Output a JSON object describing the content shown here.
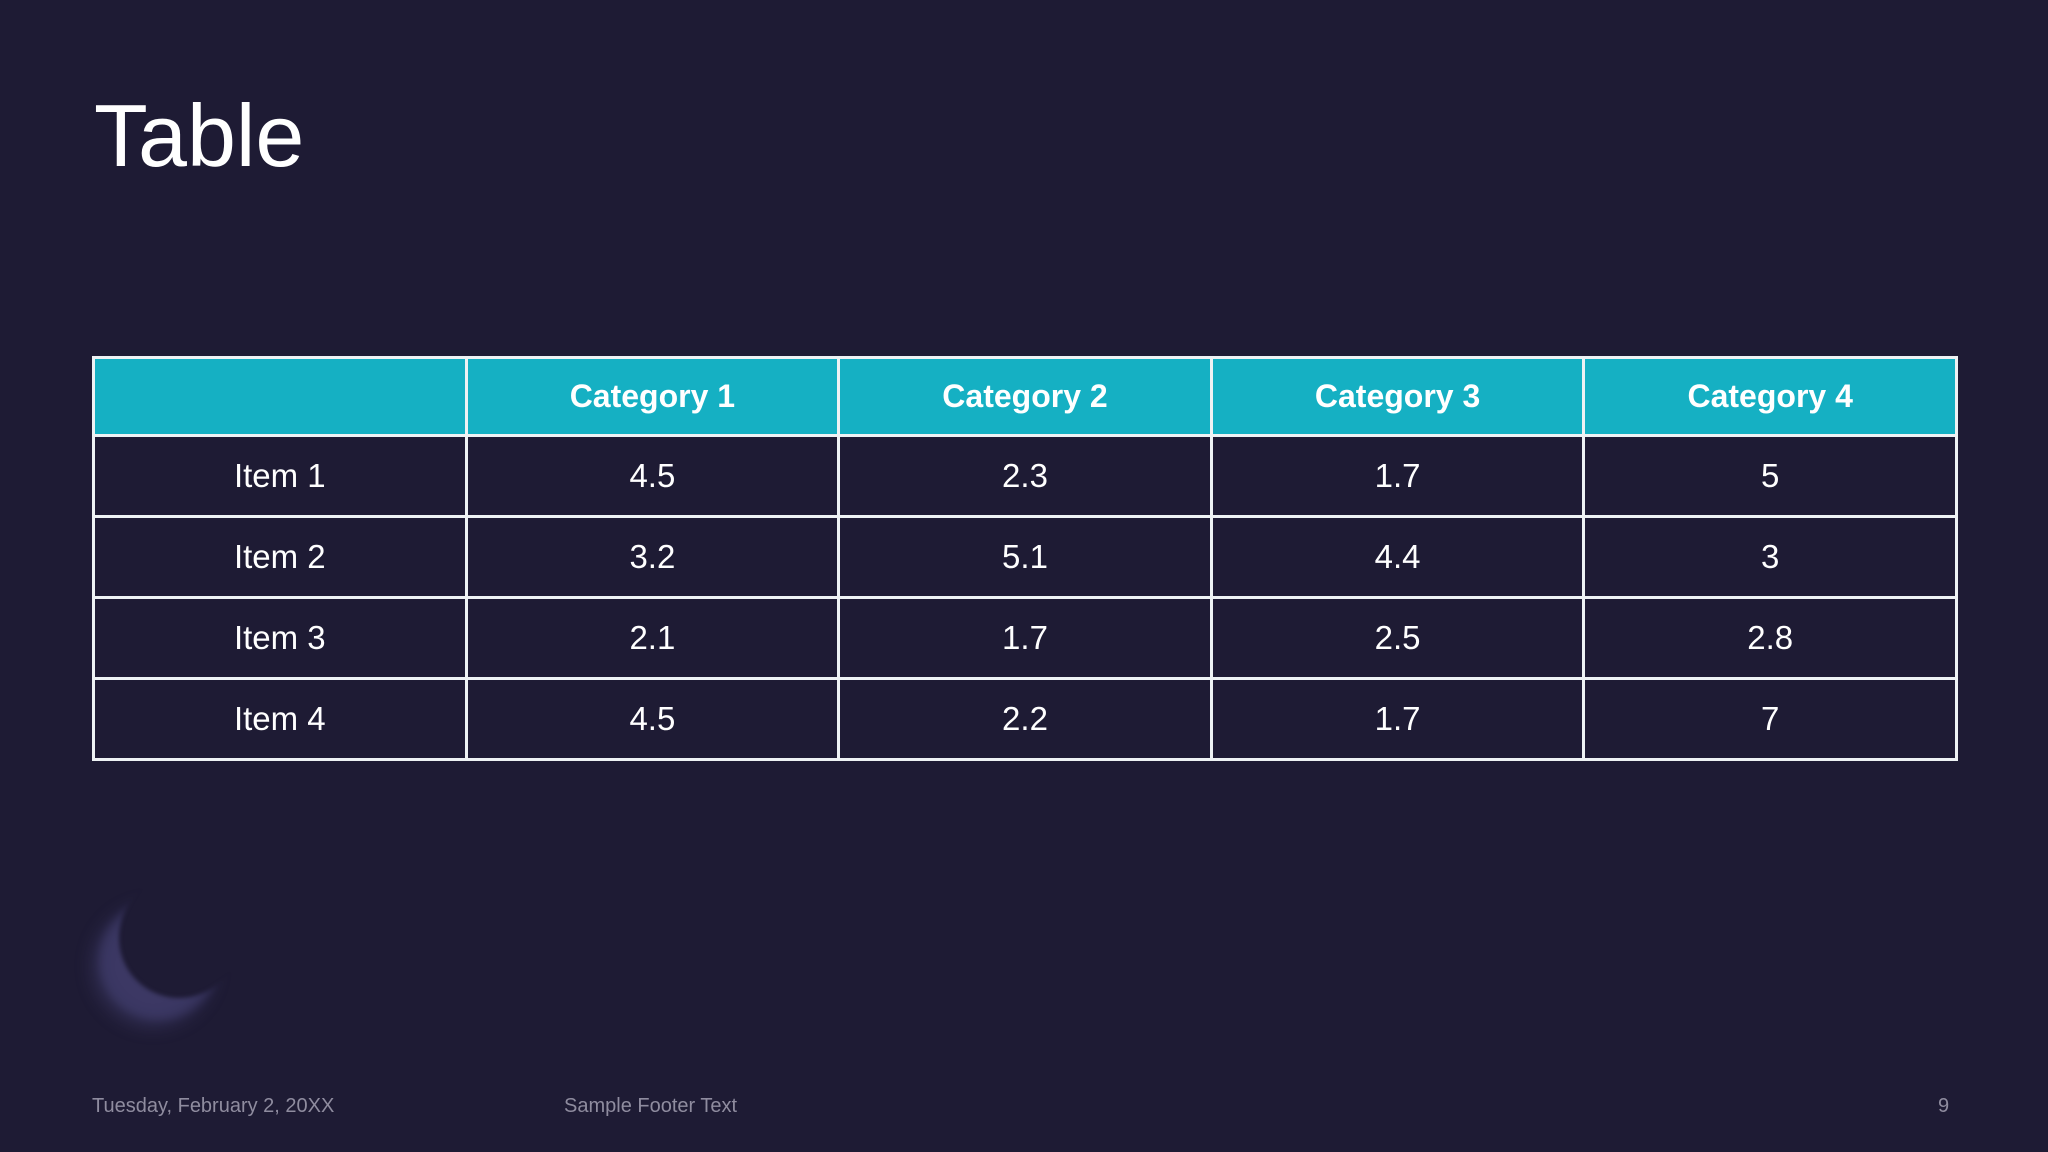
{
  "slide": {
    "title": "Table",
    "page_number": "9",
    "footer": {
      "date": "Tuesday, February 2, 20XX",
      "text": "Sample Footer Text"
    },
    "decoration": "crescent-moon",
    "colors": {
      "background": "#1e1b34",
      "table_header_fill": "#15b0c3",
      "table_border": "#eef2f4",
      "cell_text": "#ffffff",
      "footer_text": "#8f8c9f"
    },
    "table": {
      "header": [
        "",
        "Category 1",
        "Category 2",
        "Category 3",
        "Category 4"
      ],
      "rows": [
        {
          "label": "Item 1",
          "values": [
            "4.5",
            "2.3",
            "1.7",
            "5"
          ]
        },
        {
          "label": "Item 2",
          "values": [
            "3.2",
            "5.1",
            "4.4",
            "3"
          ]
        },
        {
          "label": "Item 3",
          "values": [
            "2.1",
            "1.7",
            "2.5",
            "2.8"
          ]
        },
        {
          "label": "Item 4",
          "values": [
            "4.5",
            "2.2",
            "1.7",
            "7"
          ]
        }
      ]
    }
  }
}
